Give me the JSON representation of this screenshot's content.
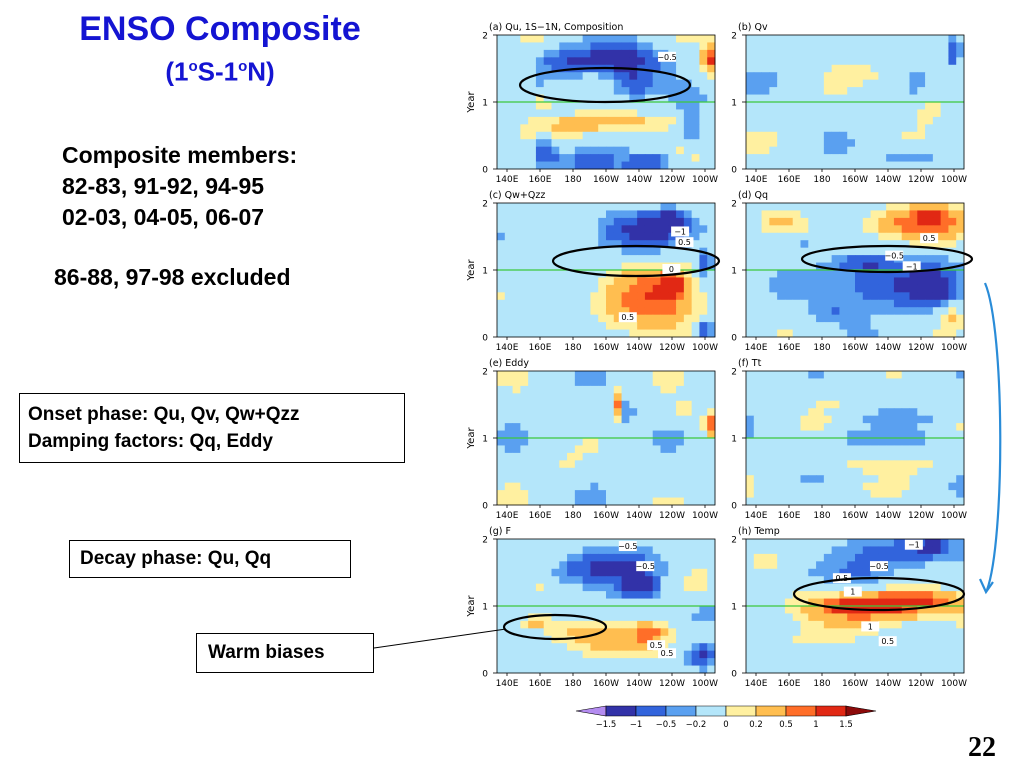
{
  "slide": {
    "title": "ENSO Composite",
    "subtitle_pre": "(1",
    "subtitle_sup1": "o",
    "subtitle_mid": "S-1",
    "subtitle_sup2": "o",
    "subtitle_post": "N)",
    "members_heading": "Composite members:",
    "members_line1": "82-83, 91-92, 94-95",
    "members_line2": "02-03, 04-05, 06-07",
    "excluded": "86-88, 97-98 excluded",
    "box_onset": "Onset phase: Qu, Qv, Qw+Qzz",
    "box_damping": "Damping factors: Qq, Eddy",
    "box_decay": "Decay phase: Qu, Qq",
    "box_warm": "Warm biases",
    "page_number": "22"
  },
  "colors": {
    "title": "#1414d2",
    "green_line": "#3cc83c",
    "arrow": "#2a8cd8"
  },
  "chart_data": {
    "type": "heatmap",
    "x_ticks": [
      "140E",
      "160E",
      "180",
      "160W",
      "140W",
      "120W",
      "100W"
    ],
    "y_ticks": [
      "0",
      "1",
      "2"
    ],
    "ylabel": "Year",
    "panels": [
      {
        "id": "a",
        "title": "(a) Qu, 1S−1N, Composition",
        "ylabel_shown": true,
        "contour_labels": [
          "−0.5"
        ],
        "blobs": [
          [
            0.55,
            0.18,
            0.22,
            0.1,
            -1.2
          ],
          [
            0.62,
            0.35,
            0.1,
            0.12,
            -1.0
          ],
          [
            0.3,
            0.2,
            0.12,
            0.1,
            -0.6
          ],
          [
            0.22,
            0.88,
            0.06,
            0.1,
            -1.0
          ],
          [
            0.2,
            0.5,
            0.12,
            0.08,
            0.5
          ],
          [
            0.55,
            0.65,
            0.3,
            0.06,
            0.6
          ],
          [
            0.98,
            0.18,
            0.04,
            0.1,
            1.6
          ],
          [
            0.9,
            0.7,
            0.05,
            0.12,
            -0.6
          ],
          [
            0.4,
            0.95,
            0.15,
            0.08,
            -0.6
          ],
          [
            0.7,
            0.95,
            0.1,
            0.05,
            -1.0
          ],
          [
            0.3,
            0.7,
            0.2,
            0.08,
            0.4
          ]
        ]
      },
      {
        "id": "b",
        "title": "(b) Qv",
        "ylabel_shown": false,
        "contour_labels": [],
        "blobs": [
          [
            0.75,
            0.9,
            0.15,
            0.08,
            -0.5
          ],
          [
            0.85,
            0.55,
            0.08,
            0.1,
            0.3
          ],
          [
            0.95,
            0.12,
            0.03,
            0.1,
            -1.0
          ],
          [
            0.3,
            0.6,
            0.15,
            0.08,
            0.2
          ],
          [
            0.6,
            0.3,
            0.12,
            0.08,
            0.25
          ]
        ]
      },
      {
        "id": "c",
        "title": "(c) Qw+Qzz",
        "ylabel_shown": true,
        "contour_labels": [
          "−1",
          "0.5",
          "0",
          "0.5"
        ],
        "blobs": [
          [
            0.72,
            0.2,
            0.22,
            0.12,
            -1.2
          ],
          [
            0.8,
            0.12,
            0.04,
            0.06,
            -1.8
          ],
          [
            0.72,
            0.72,
            0.22,
            0.22,
            1.3
          ],
          [
            0.8,
            0.6,
            0.06,
            0.08,
            1.7
          ],
          [
            0.95,
            0.95,
            0.04,
            0.06,
            -1.0
          ],
          [
            0.3,
            0.35,
            0.15,
            0.08,
            -0.25
          ],
          [
            0.25,
            0.75,
            0.12,
            0.1,
            0.2
          ],
          [
            0.95,
            0.45,
            0.04,
            0.1,
            -0.8
          ]
        ]
      },
      {
        "id": "d",
        "title": "(d) Qq",
        "ylabel_shown": false,
        "contour_labels": [
          "0.5",
          "−0.5",
          "−1"
        ],
        "blobs": [
          [
            0.78,
            0.15,
            0.25,
            0.12,
            1.2
          ],
          [
            0.85,
            0.1,
            0.05,
            0.05,
            1.9
          ],
          [
            0.65,
            0.6,
            0.25,
            0.18,
            -1.1
          ],
          [
            0.85,
            0.62,
            0.08,
            0.1,
            -1.7
          ],
          [
            0.55,
            0.45,
            0.12,
            0.05,
            -0.8
          ],
          [
            0.25,
            0.3,
            0.1,
            0.06,
            -0.3
          ],
          [
            0.4,
            0.8,
            0.1,
            0.1,
            -0.4
          ],
          [
            0.15,
            0.15,
            0.08,
            0.06,
            0.4
          ],
          [
            0.95,
            0.85,
            0.04,
            0.08,
            0.6
          ]
        ]
      },
      {
        "id": "e",
        "title": "(e) Eddy",
        "ylabel_shown": true,
        "contour_labels": [],
        "blobs": [
          [
            0.56,
            0.25,
            0.025,
            0.1,
            1.3
          ],
          [
            0.6,
            0.3,
            0.02,
            0.1,
            -1.0
          ],
          [
            0.98,
            0.4,
            0.03,
            0.08,
            1.5
          ],
          [
            0.3,
            0.7,
            0.12,
            0.1,
            0.2
          ],
          [
            0.75,
            0.8,
            0.1,
            0.1,
            -0.3
          ],
          [
            0.4,
            0.45,
            0.1,
            0.06,
            -0.2
          ],
          [
            0.85,
            0.3,
            0.08,
            0.08,
            0.3
          ]
        ]
      },
      {
        "id": "f",
        "title": "(f) Tt",
        "ylabel_shown": false,
        "contour_labels": [],
        "blobs": [
          [
            0.6,
            0.5,
            0.4,
            0.06,
            -0.3
          ],
          [
            0.65,
            0.7,
            0.35,
            0.05,
            0.3
          ],
          [
            0.55,
            0.22,
            0.25,
            0.05,
            0.25
          ],
          [
            0.4,
            0.88,
            0.2,
            0.05,
            0.2
          ],
          [
            0.75,
            0.35,
            0.2,
            0.04,
            -0.3
          ]
        ]
      },
      {
        "id": "g",
        "title": "(g) F",
        "ylabel_shown": true,
        "contour_labels": [
          "−0.5",
          "−0.5",
          "0.5",
          "0.5"
        ],
        "blobs": [
          [
            0.55,
            0.2,
            0.2,
            0.12,
            -1.0
          ],
          [
            0.65,
            0.35,
            0.08,
            0.08,
            -1.3
          ],
          [
            0.6,
            0.75,
            0.3,
            0.12,
            0.6
          ],
          [
            0.7,
            0.7,
            0.06,
            0.06,
            1.0
          ],
          [
            0.18,
            0.62,
            0.06,
            0.05,
            1.0
          ],
          [
            0.3,
            0.7,
            0.15,
            0.08,
            0.4
          ],
          [
            0.94,
            0.88,
            0.05,
            0.08,
            -1.1
          ],
          [
            0.95,
            0.55,
            0.04,
            0.06,
            -0.5
          ],
          [
            0.35,
            0.25,
            0.12,
            0.08,
            -0.5
          ]
        ]
      },
      {
        "id": "h",
        "title": "(h) Temp",
        "ylabel_shown": false,
        "contour_labels": [
          "−1",
          "−0.5",
          "0.5",
          "1",
          "1",
          "0.5"
        ],
        "blobs": [
          [
            0.62,
            0.52,
            0.38,
            0.12,
            1.2
          ],
          [
            0.55,
            0.5,
            0.15,
            0.04,
            1.9
          ],
          [
            0.75,
            0.45,
            0.18,
            0.04,
            1.6
          ],
          [
            0.75,
            0.1,
            0.22,
            0.1,
            -1.0
          ],
          [
            0.85,
            0.06,
            0.06,
            0.04,
            -1.6
          ],
          [
            0.55,
            0.25,
            0.25,
            0.08,
            -0.35
          ],
          [
            0.25,
            0.75,
            0.12,
            0.08,
            0.3
          ],
          [
            0.15,
            0.3,
            0.08,
            0.06,
            -0.25
          ]
        ]
      }
    ],
    "colorbar": {
      "labels": [
        "−1.5",
        "−1",
        "−0.5",
        "−0.2",
        "0",
        "0.2",
        "0.5",
        "1",
        "1.5"
      ],
      "colors": [
        "#b48cf0",
        "#3232a8",
        "#3264dc",
        "#5aa0f0",
        "#b4e6fa",
        "#fff0a0",
        "#ffbe50",
        "#ff6e28",
        "#e12814",
        "#8c0a0a"
      ]
    }
  }
}
